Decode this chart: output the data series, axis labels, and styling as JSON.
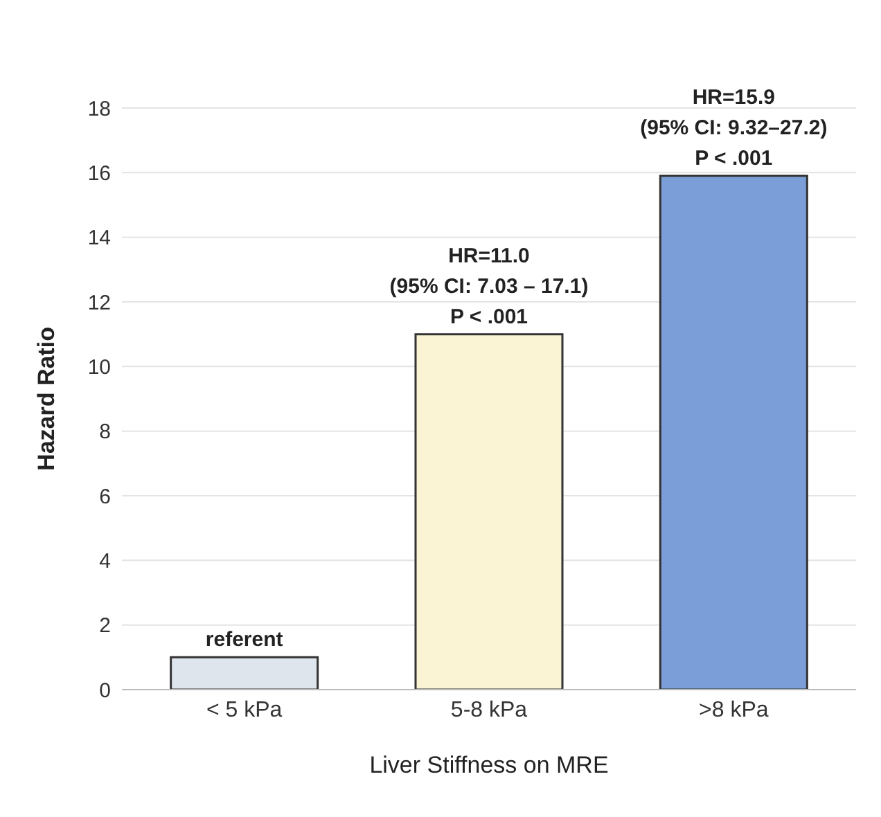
{
  "chart_data": {
    "type": "bar",
    "xlabel": "Liver Stiffness on MRE",
    "ylabel": "Hazard Ratio",
    "categories": [
      "< 5 kPa",
      "5-8 kPa",
      ">8 kPa"
    ],
    "values": [
      1,
      11.0,
      15.9
    ],
    "colors": [
      "#dfe5ec",
      "#fbf4d4",
      "#7b9ed8"
    ],
    "ylim": [
      0,
      18
    ],
    "yticks": [
      0,
      2,
      4,
      6,
      8,
      10,
      12,
      14,
      16,
      18
    ],
    "grid": "y",
    "legend": false,
    "annotations": [
      {
        "text": "referent",
        "x": "< 5 kPa",
        "y": 1
      },
      {
        "text": "HR=11.0\n(95% CI: 7.03 – 17.1)\nP < .001",
        "x": "5-8 kPa",
        "y": 11.0
      },
      {
        "text": "HR=15.9\n(95% CI: 9.32–27.2)\nP < .001",
        "x": ">8 kPa",
        "y": 15.9
      }
    ]
  }
}
